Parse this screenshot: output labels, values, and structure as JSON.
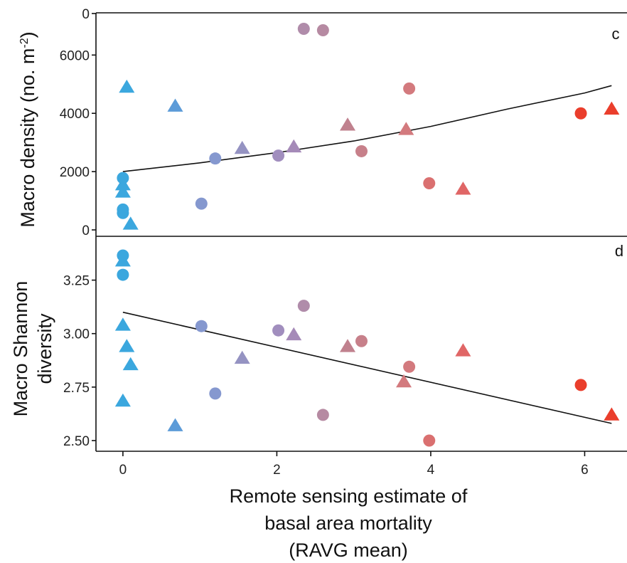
{
  "chart_data": [
    {
      "type": "scatter",
      "panel_label": "c",
      "ylabel_main": "Macro density (no. m",
      "ylabel_sup": "-2",
      "ylabel_tail": ")",
      "ylim": [
        0,
        7400
      ],
      "yticks": [
        0,
        2000,
        4000,
        6000
      ],
      "ytick_labels": [
        "0",
        "2000",
        "4000",
        "6000"
      ],
      "top_tick_label": "0",
      "fit_line": [
        [
          0,
          2000
        ],
        [
          1,
          2300
        ],
        [
          2,
          2650
        ],
        [
          3,
          3050
        ],
        [
          4,
          3550
        ],
        [
          5,
          4150
        ],
        [
          6,
          4700
        ],
        [
          6.35,
          4950
        ]
      ],
      "points": [
        {
          "x": 0.0,
          "y": 1780,
          "shape": "circle",
          "color": "#3BA7DE"
        },
        {
          "x": 0.0,
          "y": 1550,
          "shape": "triangle",
          "color": "#3BA7DE"
        },
        {
          "x": 0.0,
          "y": 1300,
          "shape": "triangle",
          "color": "#3BA7DE"
        },
        {
          "x": 0.0,
          "y": 700,
          "shape": "circle",
          "color": "#3BA7DE"
        },
        {
          "x": 0.0,
          "y": 580,
          "shape": "circle",
          "color": "#3BA7DE"
        },
        {
          "x": 0.1,
          "y": 200,
          "shape": "triangle",
          "color": "#3BA7DE"
        },
        {
          "x": 0.05,
          "y": 4900,
          "shape": "triangle",
          "color": "#3BA7DE"
        },
        {
          "x": 0.68,
          "y": 4250,
          "shape": "triangle",
          "color": "#5C9BD8"
        },
        {
          "x": 1.02,
          "y": 900,
          "shape": "circle",
          "color": "#8598CF"
        },
        {
          "x": 1.2,
          "y": 2450,
          "shape": "circle",
          "color": "#8598CF"
        },
        {
          "x": 1.55,
          "y": 2800,
          "shape": "triangle",
          "color": "#9593C2"
        },
        {
          "x": 2.02,
          "y": 2550,
          "shape": "circle",
          "color": "#A18EBE"
        },
        {
          "x": 2.22,
          "y": 2850,
          "shape": "triangle",
          "color": "#A58AB8"
        },
        {
          "x": 2.35,
          "y": 6900,
          "shape": "circle",
          "color": "#B08CAA"
        },
        {
          "x": 2.6,
          "y": 6850,
          "shape": "circle",
          "color": "#B68AA2"
        },
        {
          "x": 2.92,
          "y": 3600,
          "shape": "triangle",
          "color": "#C0818E"
        },
        {
          "x": 3.1,
          "y": 2700,
          "shape": "circle",
          "color": "#C7808A"
        },
        {
          "x": 3.68,
          "y": 3450,
          "shape": "triangle",
          "color": "#D37A7E"
        },
        {
          "x": 3.72,
          "y": 4850,
          "shape": "circle",
          "color": "#D37A7E"
        },
        {
          "x": 3.98,
          "y": 1600,
          "shape": "circle",
          "color": "#DA7070"
        },
        {
          "x": 4.42,
          "y": 1400,
          "shape": "triangle",
          "color": "#E06666"
        },
        {
          "x": 5.95,
          "y": 4000,
          "shape": "circle",
          "color": "#EA3E2C"
        },
        {
          "x": 6.35,
          "y": 4150,
          "shape": "triangle",
          "color": "#EA3E2C"
        }
      ]
    },
    {
      "type": "scatter",
      "panel_label": "d",
      "ylabel_line1": "Macro Shannon",
      "ylabel_line2": "diversity",
      "ylim": [
        2.47,
        3.395
      ],
      "yticks": [
        2.5,
        2.75,
        3.0,
        3.25
      ],
      "ytick_labels": [
        "2.50",
        "2.75",
        "3.00",
        "3.25"
      ],
      "fit_line": [
        [
          0,
          3.1
        ],
        [
          6.35,
          2.58
        ]
      ],
      "points": [
        {
          "x": 0.0,
          "y": 3.365,
          "shape": "circle",
          "color": "#3BA7DE"
        },
        {
          "x": 0.0,
          "y": 3.34,
          "shape": "triangle",
          "color": "#3BA7DE"
        },
        {
          "x": 0.0,
          "y": 3.275,
          "shape": "circle",
          "color": "#3BA7DE"
        },
        {
          "x": 0.0,
          "y": 3.04,
          "shape": "triangle",
          "color": "#3BA7DE"
        },
        {
          "x": 0.05,
          "y": 2.94,
          "shape": "triangle",
          "color": "#3BA7DE"
        },
        {
          "x": 0.1,
          "y": 2.855,
          "shape": "triangle",
          "color": "#3BA7DE"
        },
        {
          "x": 0.0,
          "y": 2.685,
          "shape": "triangle",
          "color": "#3BA7DE"
        },
        {
          "x": 0.68,
          "y": 2.57,
          "shape": "triangle",
          "color": "#5C9BD8"
        },
        {
          "x": 1.02,
          "y": 3.035,
          "shape": "circle",
          "color": "#8598CF"
        },
        {
          "x": 1.2,
          "y": 2.72,
          "shape": "circle",
          "color": "#8598CF"
        },
        {
          "x": 1.55,
          "y": 2.885,
          "shape": "triangle",
          "color": "#9593C2"
        },
        {
          "x": 2.02,
          "y": 3.015,
          "shape": "circle",
          "color": "#A18EBE"
        },
        {
          "x": 2.22,
          "y": 2.995,
          "shape": "triangle",
          "color": "#A58AB8"
        },
        {
          "x": 2.35,
          "y": 3.13,
          "shape": "circle",
          "color": "#B08CAA"
        },
        {
          "x": 2.6,
          "y": 2.62,
          "shape": "circle",
          "color": "#B68AA2"
        },
        {
          "x": 2.92,
          "y": 2.94,
          "shape": "triangle",
          "color": "#C0818E"
        },
        {
          "x": 3.1,
          "y": 2.965,
          "shape": "circle",
          "color": "#C7808A"
        },
        {
          "x": 3.65,
          "y": 2.775,
          "shape": "triangle",
          "color": "#D37A7E"
        },
        {
          "x": 3.72,
          "y": 2.845,
          "shape": "circle",
          "color": "#D37A7E"
        },
        {
          "x": 3.98,
          "y": 2.5,
          "shape": "circle",
          "color": "#DA7070"
        },
        {
          "x": 4.42,
          "y": 2.92,
          "shape": "triangle",
          "color": "#E06666"
        },
        {
          "x": 5.95,
          "y": 2.76,
          "shape": "circle",
          "color": "#EA3E2C"
        },
        {
          "x": 6.35,
          "y": 2.62,
          "shape": "triangle",
          "color": "#EA3E2C"
        }
      ]
    }
  ],
  "x_axis": {
    "xlim": [
      -0.35,
      6.55
    ],
    "ticks": [
      0,
      2,
      4,
      6
    ],
    "tick_labels": [
      "0",
      "2",
      "4",
      "6"
    ],
    "label_line1": "Remote sensing estimate of",
    "label_line2": "basal area mortality",
    "label_line3": "(RAVG mean)"
  }
}
